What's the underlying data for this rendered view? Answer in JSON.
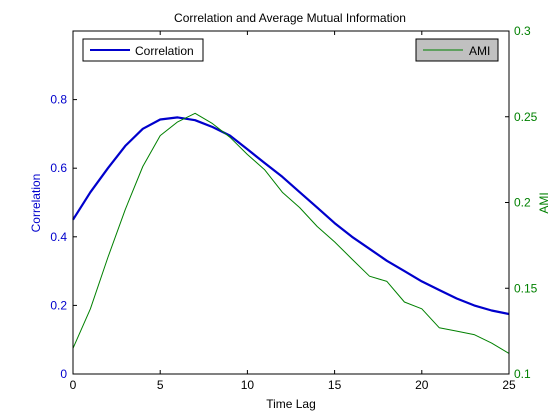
{
  "chart_data": {
    "type": "line",
    "title": "Correlation and Average Mutual Information",
    "xlabel": "Time Lag",
    "ylabel_left": "Correlation",
    "ylabel_right": "AMI",
    "xlim": [
      0,
      25
    ],
    "ylim_left": [
      0,
      1
    ],
    "ylim_right": [
      0.1,
      0.3
    ],
    "x_ticks": [
      0,
      5,
      10,
      15,
      20,
      25
    ],
    "y_ticks_left": [
      0,
      0.2,
      0.4,
      0.6,
      0.8
    ],
    "y_ticks_right": [
      0.1,
      0.15,
      0.2,
      0.25,
      0.3
    ],
    "grid": false,
    "series": [
      {
        "name": "Correlation",
        "axis": "left",
        "color": "#0000cc",
        "x": [
          0,
          1,
          2,
          3,
          4,
          5,
          6,
          7,
          8,
          9,
          10,
          11,
          12,
          13,
          14,
          15,
          16,
          17,
          18,
          19,
          20,
          21,
          22,
          23,
          24,
          25
        ],
        "values": [
          0.45,
          0.53,
          0.6,
          0.665,
          0.715,
          0.742,
          0.748,
          0.74,
          0.72,
          0.695,
          0.655,
          0.615,
          0.575,
          0.53,
          0.485,
          0.44,
          0.4,
          0.365,
          0.33,
          0.3,
          0.27,
          0.245,
          0.22,
          0.2,
          0.185,
          0.175
        ]
      },
      {
        "name": "AMI",
        "axis": "right",
        "color": "#008000",
        "x": [
          0,
          1,
          2,
          3,
          4,
          5,
          6,
          7,
          8,
          9,
          10,
          11,
          12,
          13,
          14,
          15,
          16,
          17,
          18,
          19,
          20,
          21,
          22,
          23,
          24,
          25
        ],
        "values": [
          0.115,
          0.138,
          0.168,
          0.196,
          0.221,
          0.239,
          0.247,
          0.252,
          0.246,
          0.238,
          0.228,
          0.219,
          0.206,
          0.197,
          0.186,
          0.177,
          0.167,
          0.157,
          0.154,
          0.142,
          0.138,
          0.127,
          0.125,
          0.123,
          0.118,
          0.112
        ]
      }
    ],
    "legend_left": {
      "label": "Correlation",
      "placement": "top-left"
    },
    "legend_right": {
      "label": "AMI",
      "placement": "top-right"
    }
  }
}
